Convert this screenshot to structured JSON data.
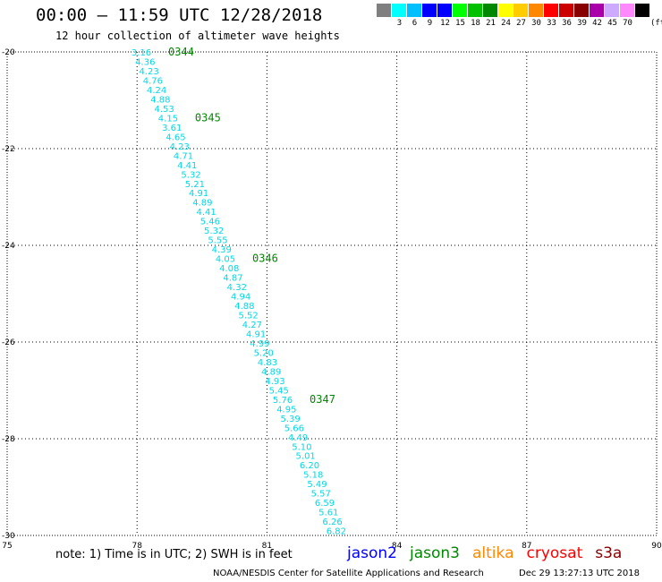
{
  "header": {
    "title": "00:00 – 11:59 UTC 12/28/2018",
    "subtitle": "12 hour collection of altimeter wave heights"
  },
  "legend": {
    "unit": "(ft)",
    "colors": [
      "#7f7f7f",
      "#00ffff",
      "#00bfff",
      "#0000ff",
      "#0000ff",
      "#00ff00",
      "#00c000",
      "#008800",
      "#ffff00",
      "#ffcc00",
      "#ff8800",
      "#ff0000",
      "#cc0000",
      "#880000",
      "#aa00aa",
      "#ccaaff",
      "#ff88ff",
      "#000000"
    ],
    "labels": [
      "",
      "3",
      "6",
      "9",
      "12",
      "15",
      "18",
      "21",
      "24",
      "27",
      "30",
      "33",
      "36",
      "39",
      "42",
      "45",
      "70",
      ""
    ]
  },
  "footer": {
    "note": "note: 1) Time is in UTC; 2) SWH is in feet",
    "satellites": [
      {
        "name": "jason2",
        "color": "#0000ff"
      },
      {
        "name": "jason3",
        "color": "#008800"
      },
      {
        "name": "altika",
        "color": "#ff8800"
      },
      {
        "name": "cryosat",
        "color": "#ff0000"
      },
      {
        "name": "s3a",
        "color": "#880000"
      }
    ],
    "credit": "NOAA/NESDIS Center for Satellite Applications and Research",
    "stamp": "Dec 29 13:27:13 UTC 2018"
  },
  "chart_data": {
    "type": "scatter",
    "title": "00:00 – 11:59 UTC 12/28/2018",
    "subtitle": "12 hour collection of altimeter wave heights",
    "xlim": [
      75,
      90
    ],
    "ylim": [
      -30,
      -20
    ],
    "x_ticks": [
      "75",
      "78",
      "81",
      "84",
      "87",
      "90"
    ],
    "y_ticks": [
      "-20",
      "-22",
      "-24",
      "-26",
      "-28",
      "-30"
    ],
    "grid": true,
    "point_color": "#00d8e8",
    "time_color": "#008800",
    "track_start": [
      78.1,
      -20.0
    ],
    "track_end": [
      82.6,
      -29.9
    ],
    "swh_values": [
      "3.16",
      "4.36",
      "4.23",
      "4.76",
      "4.24",
      "4.88",
      "4.53",
      "4.15",
      "3.61",
      "4.65",
      "4.23",
      "4.71",
      "4.41",
      "5.32",
      "5.21",
      "4.91",
      "4.89",
      "4.41",
      "5.46",
      "5.32",
      "5.55",
      "4.39",
      "4.05",
      "4.08",
      "4.87",
      "4.32",
      "4.94",
      "4.88",
      "5.52",
      "4.27",
      "4.91",
      "4.99",
      "5.20",
      "4.83",
      "4.89",
      "4.93",
      "5.45",
      "5.76",
      "4.95",
      "5.39",
      "5.66",
      "4.49",
      "5.10",
      "5.01",
      "6.20",
      "5.18",
      "5.49",
      "5.57",
      "6.59",
      "5.61",
      "6.26",
      "6.82"
    ],
    "time_labels": [
      {
        "text": "0344",
        "index": 0
      },
      {
        "text": "0345",
        "index": 7
      },
      {
        "text": "0346",
        "index": 22
      },
      {
        "text": "0347",
        "index": 37
      }
    ]
  }
}
